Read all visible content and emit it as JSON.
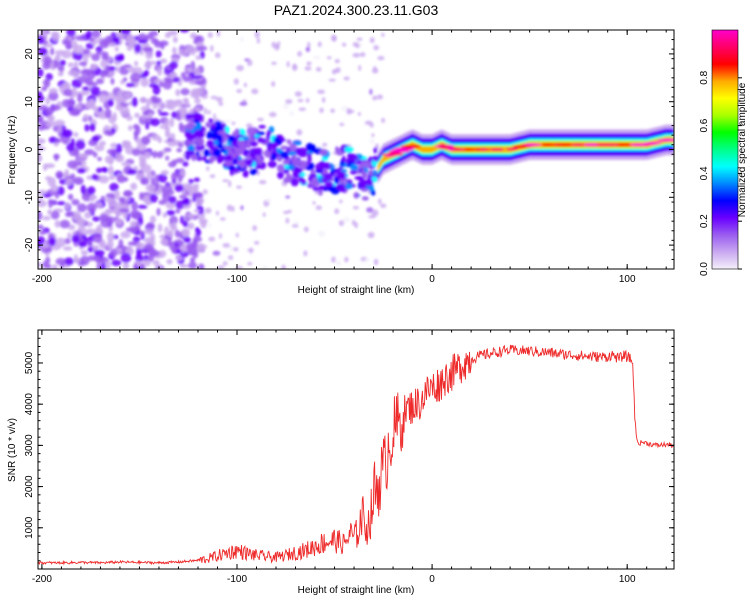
{
  "title": "PAZ1.2024.300.23.11.G03",
  "chart_data": [
    {
      "type": "heatmap",
      "xlabel": "Height of straight line (km)",
      "ylabel": "Frequency (Hz)",
      "xlim": [
        -202,
        124
      ],
      "ylim": [
        -25,
        25
      ],
      "x_ticks": [
        "-200",
        "-100",
        "0",
        "100"
      ],
      "y_ticks": [
        "20",
        "10",
        "0",
        "-10",
        "-20"
      ],
      "colorbar": {
        "label": "Normalized spectral amplitude",
        "range": [
          0,
          1
        ],
        "ticks": [
          "0.0",
          "0.2",
          "0.4",
          "0.6",
          "0.8"
        ],
        "colormap": [
          "#f4f0fa",
          "#c9a8f0",
          "#9a5cf0",
          "#6a00ff",
          "#0000ff",
          "#0088ff",
          "#00ffff",
          "#00ff88",
          "#00ff00",
          "#aaff00",
          "#ffff00",
          "#ffaa00",
          "#ff0000",
          "#ff0066",
          "#ff00cc"
        ]
      },
      "ridge": {
        "x": [
          -125,
          -115,
          -105,
          -95,
          -85,
          -75,
          -65,
          -55,
          -45,
          -40,
          -35,
          -30,
          -28,
          -25,
          -20,
          -15,
          -10,
          -5,
          0,
          5,
          10,
          20,
          30,
          40,
          50,
          60,
          70,
          80,
          90,
          100,
          110,
          120
        ],
        "y": [
          3,
          2,
          0,
          -1,
          1,
          -2,
          -3,
          -5,
          -4,
          -5,
          -6,
          -5,
          -4,
          -2,
          -1,
          0,
          1,
          0,
          0,
          1,
          0,
          0,
          0,
          0,
          1,
          1,
          1,
          1,
          1,
          1,
          1,
          2
        ]
      }
    },
    {
      "type": "line",
      "xlabel": "Height of straight line (km)",
      "ylabel": "SNR (10 * v/v)",
      "xlim": [
        -202,
        124
      ],
      "ylim": [
        0,
        5800
      ],
      "x_ticks": [
        "-200",
        "-100",
        "0",
        "100"
      ],
      "y_ticks": [
        "1000",
        "2000",
        "3000",
        "4000",
        "5000"
      ],
      "color": "#ee2a2a",
      "series": [
        {
          "x": [
            -202,
            -190,
            -180,
            -170,
            -160,
            -150,
            -140,
            -130,
            -125,
            -120,
            -115,
            -110,
            -105,
            -100,
            -95,
            -90,
            -85,
            -80,
            -75,
            -70,
            -65,
            -60,
            -55,
            -50,
            -45,
            -42,
            -40,
            -38,
            -36,
            -35,
            -33,
            -31,
            -30,
            -28,
            -26,
            -24,
            -22,
            -20,
            -18,
            -16,
            -14,
            -12,
            -10,
            -8,
            -6,
            -4,
            -2,
            0,
            2,
            4,
            6,
            8,
            10,
            12,
            14,
            16,
            18,
            20,
            25,
            30,
            35,
            40,
            45,
            50,
            55,
            60,
            65,
            70,
            75,
            80,
            85,
            90,
            92,
            94,
            96,
            98,
            100,
            102,
            103,
            104,
            105,
            106,
            108,
            110,
            115,
            120,
            124
          ],
          "y": [
            150,
            150,
            160,
            150,
            170,
            160,
            150,
            170,
            190,
            210,
            250,
            320,
            390,
            450,
            380,
            330,
            300,
            280,
            330,
            400,
            450,
            550,
            650,
            700,
            600,
            850,
            750,
            900,
            1300,
            1200,
            1000,
            1400,
            1800,
            2000,
            2300,
            2500,
            3100,
            3300,
            3500,
            3600,
            3800,
            3900,
            3950,
            4000,
            4050,
            4200,
            4350,
            4400,
            4450,
            4500,
            4600,
            4700,
            4750,
            4800,
            4900,
            5000,
            5050,
            5100,
            5180,
            5230,
            5280,
            5310,
            5300,
            5290,
            5270,
            5250,
            5220,
            5200,
            5180,
            5160,
            5150,
            5150,
            5200,
            5150,
            5100,
            5180,
            5150,
            5100,
            4900,
            3600,
            3100,
            3050,
            3080,
            3050,
            3000,
            3020,
            3000
          ]
        }
      ]
    }
  ]
}
